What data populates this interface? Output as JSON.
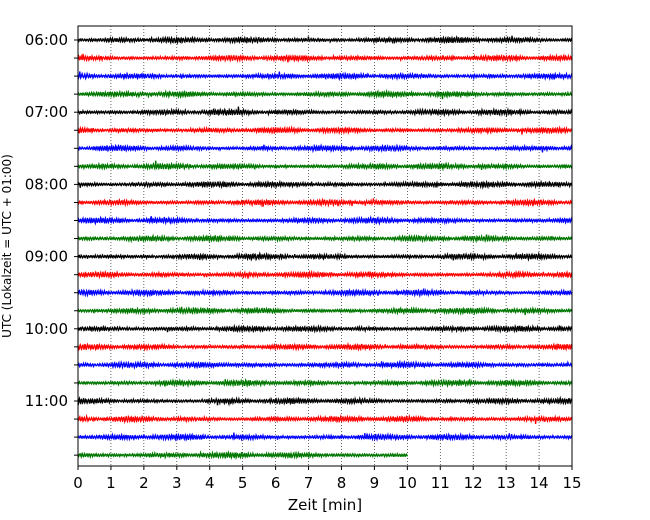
{
  "chart_data": {
    "type": "line",
    "title": "",
    "xlabel": "Zeit  [min]",
    "ylabel": "UTC (Lokalzeit = UTC + 01:00)",
    "xlim": [
      0,
      15
    ],
    "x_ticks": [
      0,
      1,
      2,
      3,
      4,
      5,
      6,
      7,
      8,
      9,
      10,
      11,
      12,
      13,
      14,
      15
    ],
    "y_tick_labels": [
      "06:00",
      "07:00",
      "08:00",
      "09:00",
      "10:00",
      "11:00"
    ],
    "grid": "vertical dotted",
    "trace_colors": [
      "#000000",
      "#ff0000",
      "#0000ff",
      "#007700"
    ],
    "traces": [
      {
        "start": "06:00",
        "end_min": 15
      },
      {
        "start": "06:15",
        "end_min": 15
      },
      {
        "start": "06:30",
        "end_min": 15
      },
      {
        "start": "06:45",
        "end_min": 15
      },
      {
        "start": "07:00",
        "end_min": 15
      },
      {
        "start": "07:15",
        "end_min": 15
      },
      {
        "start": "07:30",
        "end_min": 15
      },
      {
        "start": "07:45",
        "end_min": 15
      },
      {
        "start": "08:00",
        "end_min": 15
      },
      {
        "start": "08:15",
        "end_min": 15
      },
      {
        "start": "08:30",
        "end_min": 15
      },
      {
        "start": "08:45",
        "end_min": 15
      },
      {
        "start": "09:00",
        "end_min": 15
      },
      {
        "start": "09:15",
        "end_min": 15
      },
      {
        "start": "09:30",
        "end_min": 15
      },
      {
        "start": "09:45",
        "end_min": 15
      },
      {
        "start": "10:00",
        "end_min": 15
      },
      {
        "start": "10:15",
        "end_min": 15
      },
      {
        "start": "10:30",
        "end_min": 15
      },
      {
        "start": "10:45",
        "end_min": 15
      },
      {
        "start": "11:00",
        "end_min": 15
      },
      {
        "start": "11:15",
        "end_min": 15
      },
      {
        "start": "11:30",
        "end_min": 15
      },
      {
        "start": "11:45",
        "end_min": 10
      }
    ]
  }
}
